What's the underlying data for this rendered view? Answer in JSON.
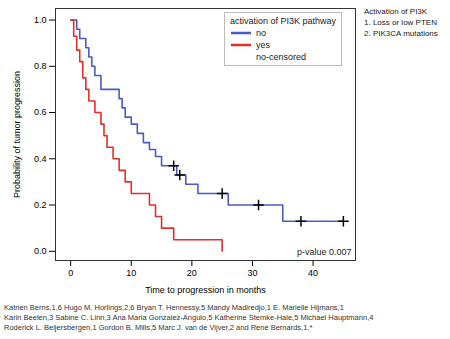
{
  "chart_data": {
    "type": "line",
    "line_style": "step",
    "x_label": "Time to progression in months",
    "y_label": "Probability of tumor progression",
    "xlim": [
      -2.5,
      47
    ],
    "xticks": [
      0,
      10,
      20,
      30,
      40
    ],
    "ylim": [
      -0.04,
      1.05
    ],
    "yticks": [
      {
        "value": 0,
        "label": "0.0"
      },
      {
        "value": 0.2,
        "label": "0.2"
      },
      {
        "value": 0.4,
        "label": "0.4"
      },
      {
        "value": 0.6,
        "label": "0.6"
      },
      {
        "value": 0.8,
        "label": "0.8"
      },
      {
        "value": 1,
        "label": "1.0"
      }
    ],
    "grid": false,
    "legend": "top-right",
    "legend_title": "activation of PI3K pathway",
    "annotations": [
      "p-value 0.007"
    ],
    "side_note": [
      "Activation of PI3K",
      "1. Loss or low PTEN",
      "2. PIK3CA mutations"
    ],
    "caption": [
      "Katrien Berns,1,6 Hugo M. Horlings,2,6 Bryan T. Hennessy,5 Mandy Madiredjo,1 E. Marielle Hijmans,1",
      "Karin Beelen,3 Sabine C. Linn,3 Ana Maria Gonzalez-Angulo,5 Katherine Stemke-Hale,5 Michael Hauptmann,4",
      "Roderick L. Beijersbergen,1 Gordon B. Mills,5 Marc J. van de Vijver,2 and René Bernards,1,*"
    ],
    "series": [
      {
        "name": "no",
        "color": "#4a5cc4",
        "type": "line",
        "x": [
          0,
          1,
          1.5,
          2.5,
          3,
          3.5,
          4,
          5,
          8,
          8.5,
          9,
          10,
          11,
          12,
          13,
          14,
          15,
          17.5,
          19,
          21,
          26,
          35,
          45
        ],
        "values": [
          1.0,
          0.96,
          0.92,
          0.88,
          0.84,
          0.8,
          0.76,
          0.7,
          0.66,
          0.62,
          0.58,
          0.55,
          0.51,
          0.47,
          0.44,
          0.41,
          0.37,
          0.33,
          0.29,
          0.25,
          0.2,
          0.13,
          0.13
        ]
      },
      {
        "name": "yes",
        "color": "#e0302a",
        "type": "line",
        "x": [
          0,
          0.5,
          1,
          1.5,
          2,
          2.5,
          3,
          4,
          5,
          5.5,
          6,
          7,
          8,
          9,
          10,
          13,
          14,
          15,
          17,
          25
        ],
        "values": [
          1.0,
          0.93,
          0.87,
          0.82,
          0.75,
          0.7,
          0.65,
          0.6,
          0.55,
          0.5,
          0.45,
          0.4,
          0.35,
          0.3,
          0.25,
          0.2,
          0.15,
          0.1,
          0.05,
          0.0
        ]
      },
      {
        "name": "no-censored",
        "color": "#000000",
        "type": "scatter",
        "marker": "plus",
        "x": [
          17,
          18,
          25,
          31,
          38,
          45
        ],
        "values": [
          0.37,
          0.33,
          0.25,
          0.2,
          0.13,
          0.13
        ]
      }
    ]
  }
}
